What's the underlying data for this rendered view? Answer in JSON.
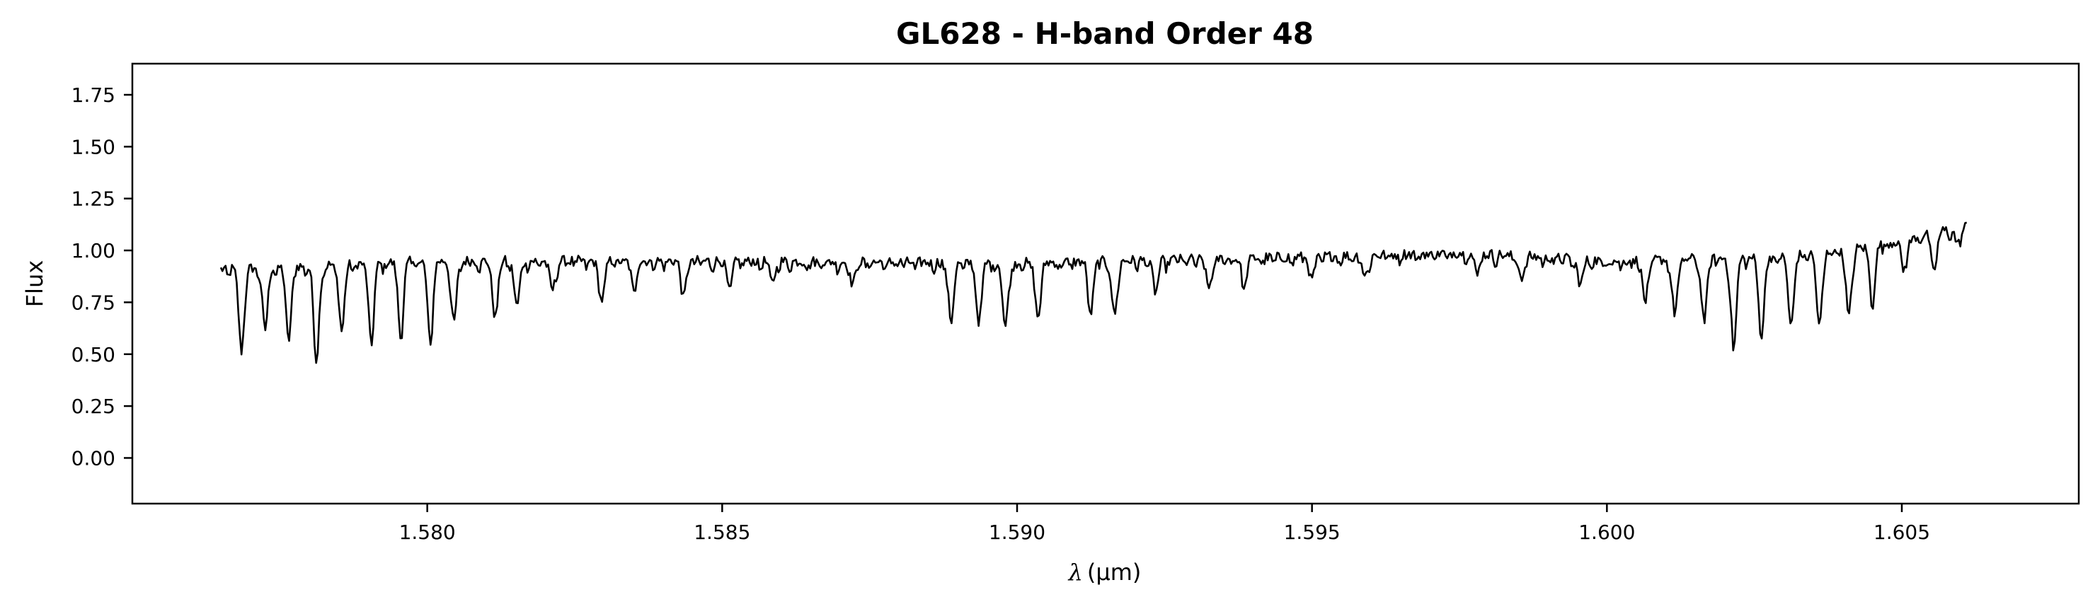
{
  "chart_data": {
    "type": "line",
    "title": "GL628 - H-band Order 48",
    "xlabel_symbol": "λ",
    "xlabel_unit": "(μm)",
    "ylabel": "Flux",
    "xlim": [
      1.575,
      1.608
    ],
    "ylim": [
      -0.22,
      1.9
    ],
    "xticks": [
      1.58,
      1.585,
      1.59,
      1.595,
      1.6,
      1.605
    ],
    "xtick_labels": [
      "1.580",
      "1.585",
      "1.590",
      "1.595",
      "1.600",
      "1.605"
    ],
    "yticks": [
      0.0,
      0.25,
      0.5,
      0.75,
      1.0,
      1.25,
      1.5,
      1.75
    ],
    "ytick_labels": [
      "0.00",
      "0.25",
      "0.50",
      "0.75",
      "1.00",
      "1.25",
      "1.50",
      "1.75"
    ],
    "grid": false,
    "line_color": "#000000",
    "series": [
      {
        "x_range": [
          1.5765,
          1.6061
        ],
        "n_points": 1100,
        "continuum": [
          [
            1.5765,
            0.91
          ],
          [
            1.58,
            0.95
          ],
          [
            1.585,
            0.95
          ],
          [
            1.59,
            0.94
          ],
          [
            1.595,
            0.97
          ],
          [
            1.5975,
            0.99
          ],
          [
            1.6,
            0.95
          ],
          [
            1.603,
            0.97
          ],
          [
            1.6045,
            1.02
          ],
          [
            1.6061,
            1.12
          ]
        ],
        "absorption_lines": [
          [
            1.57685,
            0.4
          ],
          [
            1.57725,
            0.3
          ],
          [
            1.57765,
            0.35
          ],
          [
            1.57812,
            0.46
          ],
          [
            1.57855,
            0.32
          ],
          [
            1.57905,
            0.38
          ],
          [
            1.57955,
            0.34
          ],
          [
            1.58005,
            0.38
          ],
          [
            1.58045,
            0.3
          ],
          [
            1.58115,
            0.27
          ],
          [
            1.58152,
            0.22
          ],
          [
            1.58212,
            0.14
          ],
          [
            1.58295,
            0.19
          ],
          [
            1.5835,
            0.12
          ],
          [
            1.58435,
            0.15
          ],
          [
            1.58512,
            0.12
          ],
          [
            1.58585,
            0.1
          ],
          [
            1.5872,
            0.1
          ],
          [
            1.58888,
            0.28
          ],
          [
            1.58935,
            0.28
          ],
          [
            1.5898,
            0.31
          ],
          [
            1.59035,
            0.26
          ],
          [
            1.59125,
            0.24
          ],
          [
            1.59165,
            0.26
          ],
          [
            1.59235,
            0.15
          ],
          [
            1.59325,
            0.14
          ],
          [
            1.59385,
            0.12
          ],
          [
            1.595,
            0.1
          ],
          [
            1.5959,
            0.1
          ],
          [
            1.5978,
            0.08
          ],
          [
            1.59855,
            0.1
          ],
          [
            1.59955,
            0.12
          ],
          [
            1.60065,
            0.2
          ],
          [
            1.60115,
            0.26
          ],
          [
            1.60165,
            0.3
          ],
          [
            1.60215,
            0.44
          ],
          [
            1.60262,
            0.38
          ],
          [
            1.60312,
            0.34
          ],
          [
            1.6036,
            0.36
          ],
          [
            1.6041,
            0.33
          ],
          [
            1.6045,
            0.26
          ],
          [
            1.60505,
            0.14
          ],
          [
            1.60555,
            0.18
          ],
          [
            1.60595,
            0.08
          ]
        ]
      }
    ]
  }
}
